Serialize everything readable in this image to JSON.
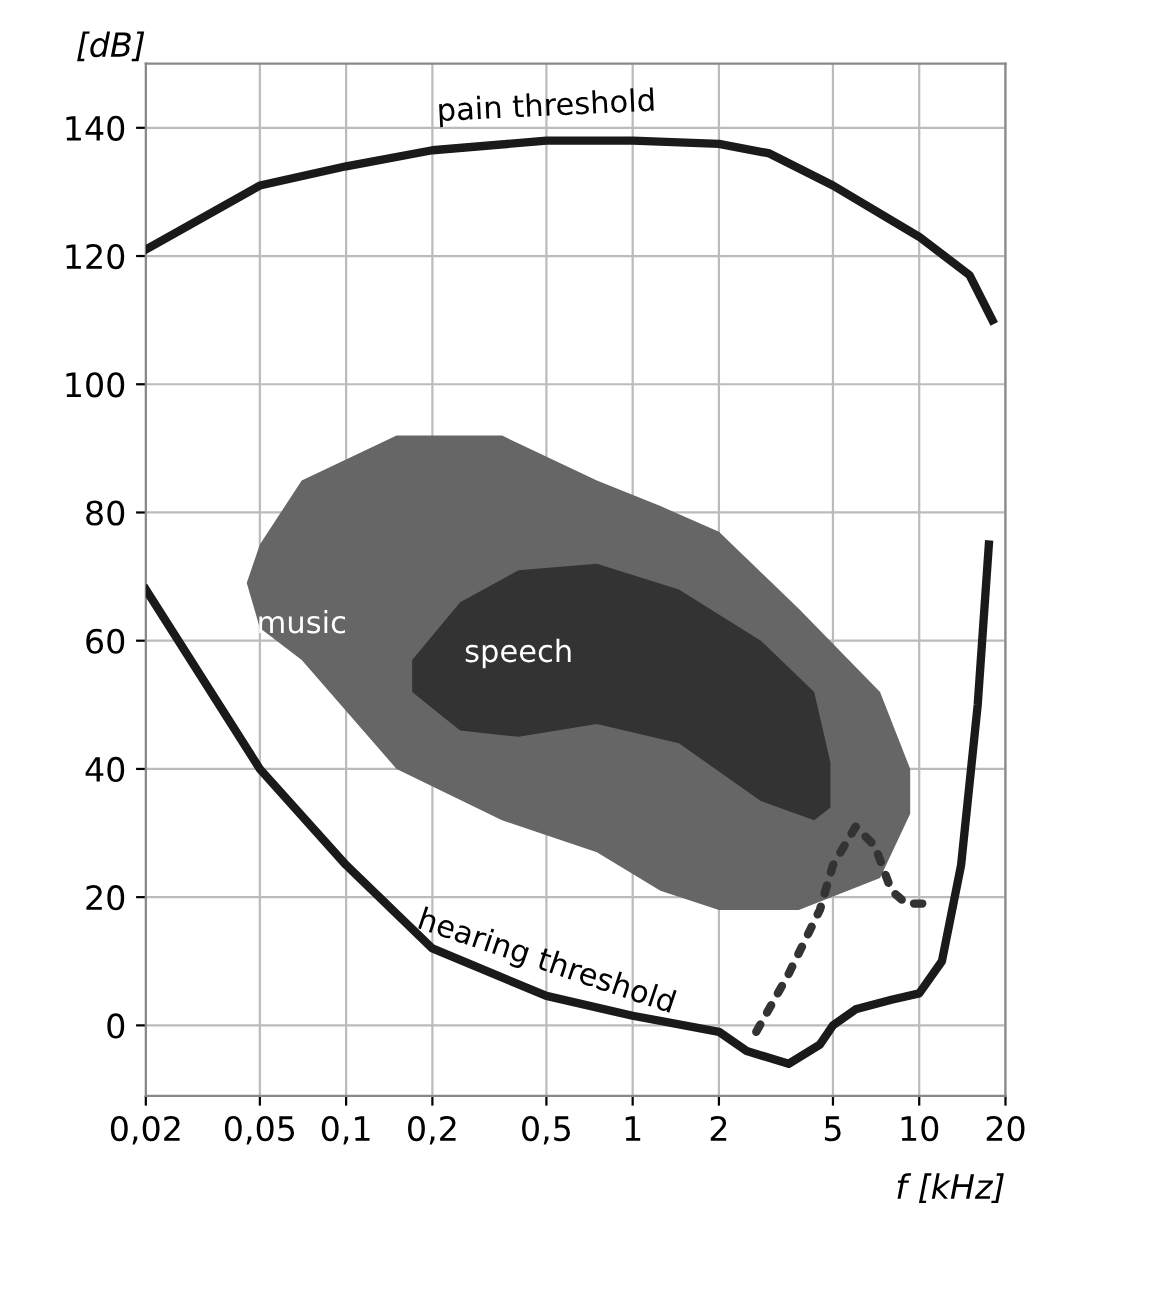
{
  "chart_data": {
    "type": "line",
    "xlabel": "f [kHz]",
    "ylabel": "[dB]",
    "log": "x",
    "xlim": [
      0.02,
      20
    ],
    "ylim": [
      -11,
      150
    ],
    "xticks": [
      {
        "value": 0.02,
        "label": "0,02"
      },
      {
        "value": 0.05,
        "label": "0,05"
      },
      {
        "value": 0.1,
        "label": "0,1"
      },
      {
        "value": 0.2,
        "label": "0,2"
      },
      {
        "value": 0.5,
        "label": "0,5"
      },
      1,
      2,
      5,
      10,
      20
    ],
    "yticks": [
      0,
      20,
      40,
      60,
      80,
      100,
      120,
      140
    ],
    "grid": true,
    "legend": false,
    "series": [
      {
        "name": "music",
        "type": "area",
        "color": "#666666",
        "x": [
          0.045,
          0.05,
          0.07,
          0.15,
          0.35,
          0.75,
          1.25,
          2,
          3.8,
          7.3,
          9.3,
          9.3,
          7.3,
          3.8,
          2,
          1.25,
          0.75,
          0.35,
          0.15,
          0.07,
          0.05
        ],
        "values": [
          69,
          75,
          85,
          92,
          92,
          85,
          81,
          77,
          65,
          52,
          40,
          33,
          23,
          18,
          18,
          21,
          27,
          32,
          40,
          57,
          62
        ]
      },
      {
        "name": "speech",
        "type": "area",
        "color": "#333333",
        "x": [
          0.17,
          0.25,
          0.4,
          0.75,
          1.45,
          2.8,
          4.3,
          4.9,
          4.9,
          4.3,
          2.8,
          1.45,
          0.75,
          0.4,
          0.25,
          0.17
        ],
        "values": [
          57,
          66,
          71,
          72,
          68,
          60,
          52,
          41,
          34,
          32,
          35,
          44,
          47,
          45,
          46,
          52
        ]
      },
      {
        "name": "pain threshold",
        "color": "#1a1a1a",
        "line_style": "solid",
        "x": [
          0.02,
          0.05,
          0.1,
          0.2,
          0.5,
          1,
          2,
          3,
          5,
          10,
          15,
          18
        ],
        "values": [
          121,
          131,
          134,
          136.5,
          138,
          138,
          137.5,
          136,
          131,
          123,
          117,
          110
        ]
      },
      {
        "name": "hearing threshold",
        "color": "#1a1a1a",
        "line_style": "solid",
        "x": [
          0.02,
          0.05,
          0.1,
          0.2,
          0.5,
          1,
          2,
          2.5,
          3.5,
          4.5,
          5,
          6,
          8,
          10,
          12,
          14,
          16,
          17.5
        ],
        "values": [
          68,
          40,
          25,
          12,
          4.6,
          1.5,
          -1,
          -4,
          -6,
          -3,
          0,
          2.5,
          4,
          5,
          10,
          25,
          50,
          75
        ]
      },
      {
        "color": "#333333",
        "line_style": "dotted",
        "x": [
          2.7,
          3.5,
          4.5,
          5,
          6,
          7,
          8,
          9,
          10.5
        ],
        "values": [
          -1,
          8,
          18,
          25,
          31,
          28,
          21,
          19,
          19
        ]
      }
    ]
  }
}
